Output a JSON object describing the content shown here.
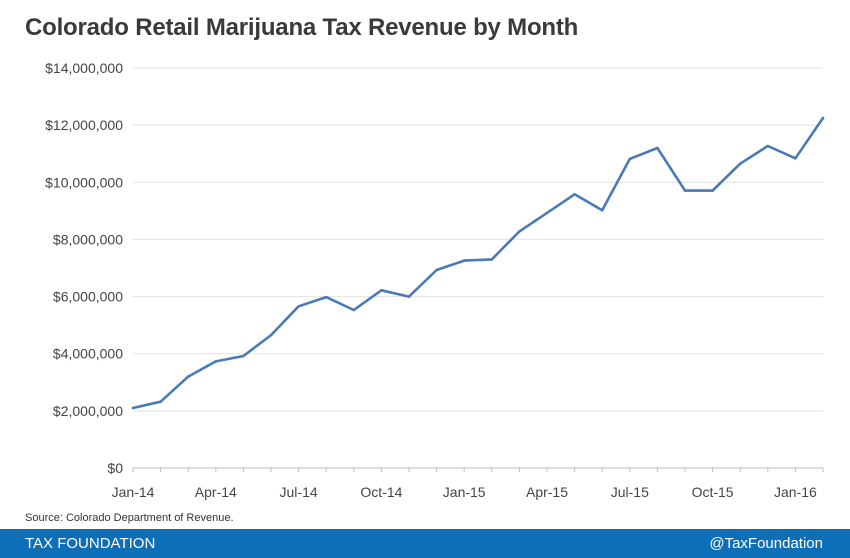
{
  "chart_data": {
    "type": "line",
    "title": "Colorado Retail Marijuana Tax Revenue by Month",
    "xlabel": "",
    "ylabel": "",
    "ylim": [
      0,
      14000000
    ],
    "yticks": [
      0,
      2000000,
      4000000,
      6000000,
      8000000,
      10000000,
      12000000,
      14000000
    ],
    "ytick_labels": [
      "$0",
      "$2,000,000",
      "$4,000,000",
      "$6,000,000",
      "$8,000,000",
      "$10,000,000",
      "$12,000,000",
      "$14,000,000"
    ],
    "xtick_labels": [
      "Jan-14",
      "Apr-14",
      "Jul-14",
      "Oct-14",
      "Jan-15",
      "Apr-15",
      "Jul-15",
      "Oct-15",
      "Jan-16"
    ],
    "xtick_every": 3,
    "series": [
      {
        "name": "Tax Revenue",
        "color": "#4a7ab5",
        "categories": [
          "Jan-14",
          "Feb-14",
          "Mar-14",
          "Apr-14",
          "May-14",
          "Jun-14",
          "Jul-14",
          "Aug-14",
          "Sep-14",
          "Oct-14",
          "Nov-14",
          "Dec-14",
          "Jan-15",
          "Feb-15",
          "Mar-15",
          "Apr-15",
          "May-15",
          "Jun-15",
          "Jul-15",
          "Aug-15",
          "Sep-15",
          "Oct-15",
          "Nov-15",
          "Dec-15",
          "Jan-16",
          "Feb-16"
        ],
        "values": [
          2100000,
          2320000,
          3200000,
          3730000,
          3920000,
          4650000,
          5660000,
          5980000,
          5530000,
          6220000,
          6000000,
          6930000,
          7260000,
          7300000,
          8280000,
          8930000,
          9580000,
          9020000,
          10820000,
          11200000,
          9710000,
          9710000,
          10650000,
          11270000,
          10840000,
          12250000
        ]
      }
    ]
  },
  "footer": {
    "source": "Source: Colorado Department of Revenue.",
    "brand": "TAX FOUNDATION",
    "handle": "@TaxFoundation"
  },
  "colors": {
    "line": "#4a7ab5",
    "footer_bg": "#0d6fb8",
    "grid": "#e2e2e2"
  }
}
